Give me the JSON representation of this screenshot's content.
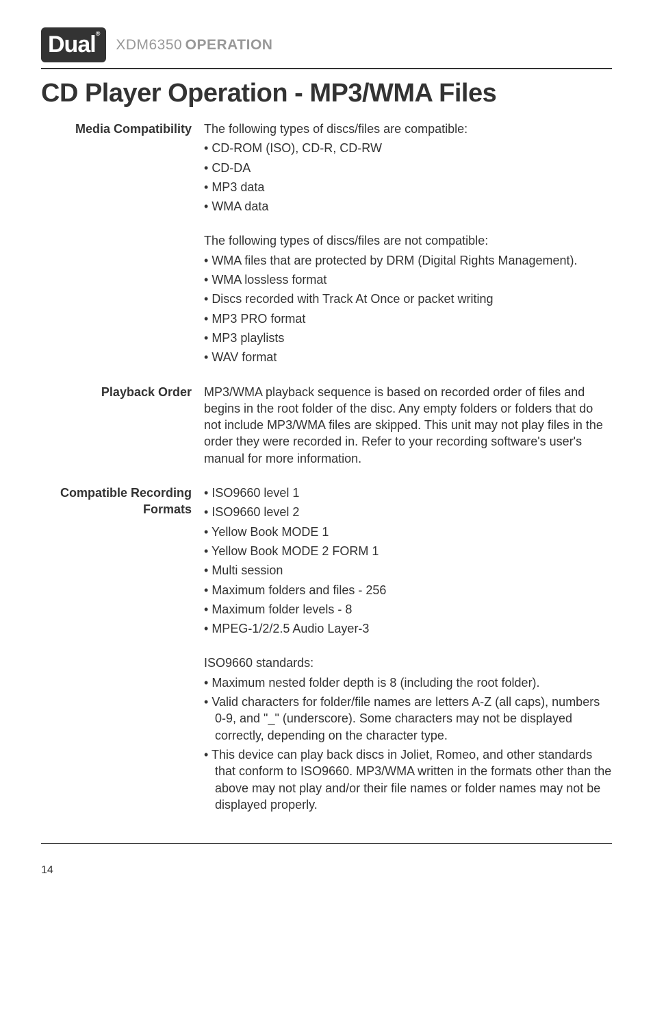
{
  "header": {
    "logo_text": "Dual",
    "model": "XDM6350",
    "section": "OPERATION"
  },
  "title": "CD Player Operation - MP3/WMA Files",
  "sections": [
    {
      "label": "Media Compatibility",
      "blocks": [
        {
          "lead": "The following types of discs/files are compatible:",
          "bullets": [
            "CD-ROM (ISO), CD-R, CD-RW",
            "CD-DA",
            "MP3 data",
            "WMA data"
          ]
        },
        {
          "lead": "The following types of discs/files are not compatible:",
          "bullets": [
            "WMA files that are protected by DRM (Digital Rights Management).",
            "WMA lossless format",
            "Discs recorded with Track At Once or packet writing",
            "MP3 PRO format",
            "MP3 playlists",
            "WAV format"
          ]
        }
      ]
    },
    {
      "label": "Playback Order",
      "paragraph": "MP3/WMA playback sequence is based on recorded order of files and begins in the root folder of the disc. Any empty folders or folders that do not include MP3/WMA files are skipped. This unit may not play files in the order they were recorded in. Refer to your recording software's user's manual for more information."
    },
    {
      "label": "Compatible Recording Formats",
      "blocks": [
        {
          "bullets": [
            "ISO9660 level 1",
            "ISO9660 level 2",
            "Yellow Book MODE 1",
            "Yellow Book MODE 2 FORM 1",
            "Multi session",
            "Maximum folders and files - 256",
            "Maximum folder levels - 8",
            "MPEG-1/2/2.5 Audio Layer-3"
          ]
        },
        {
          "lead": "ISO9660 standards:",
          "bullets": [
            "Maximum nested folder depth is 8 (including the root folder).",
            "Valid characters for folder/file names are letters A-Z (all caps), numbers 0-9, and \"_\" (underscore). Some characters may not be displayed correctly, depending on the character type.",
            "This device can play back discs in Joliet, Romeo, and other standards that conform to ISO9660. MP3/WMA written in the formats other than the above may not play and/or their file names or folder names may not be displayed properly."
          ]
        }
      ]
    }
  ],
  "page_number": "14"
}
